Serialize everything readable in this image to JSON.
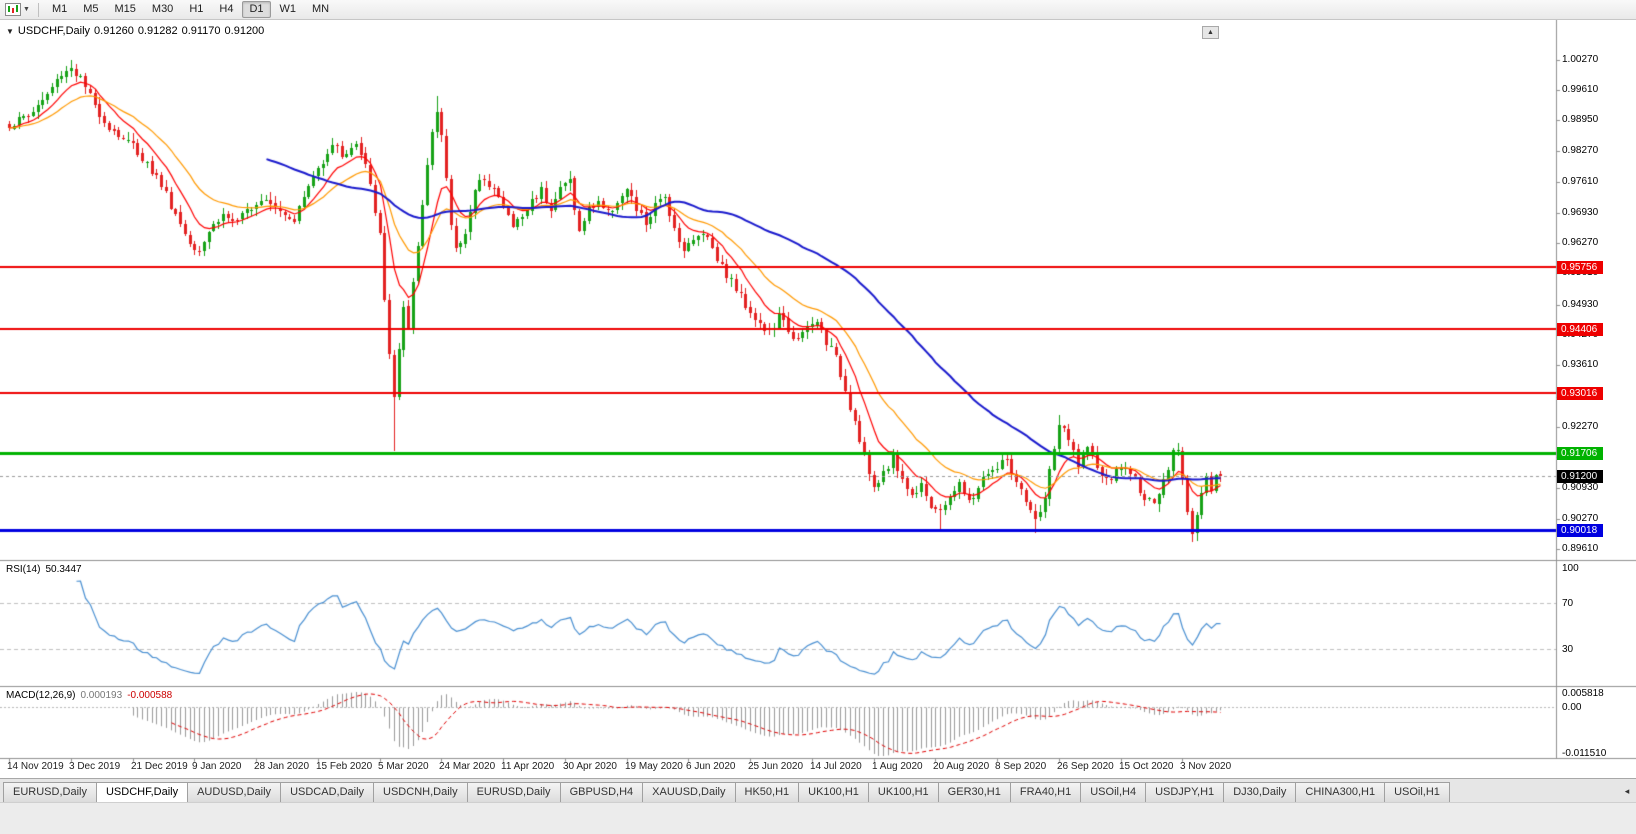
{
  "toolbar": {
    "timeframes": [
      "M1",
      "M5",
      "M15",
      "M30",
      "H1",
      "H4",
      "D1",
      "W1",
      "MN"
    ],
    "active_timeframe": "D1",
    "caret_icon": "▼"
  },
  "chart": {
    "title_marker": "▼",
    "symbol_label": "USDCHF,Daily",
    "open": "0.91260",
    "high": "0.91282",
    "low": "0.91170",
    "close": "0.91200",
    "corner_icon": "▲"
  },
  "price_axis": {
    "labels": [
      "1.00270",
      "0.99610",
      "0.98950",
      "0.98270",
      "0.97610",
      "0.96930",
      "0.96270",
      "0.95610",
      "0.94930",
      "0.94270",
      "0.93610",
      "0.92930",
      "0.92270",
      "0.91610",
      "0.90930",
      "0.90270",
      "0.89610"
    ]
  },
  "levels": [
    {
      "label": "0.95756",
      "price": 0.95756,
      "color": "#ee0000",
      "width": 2
    },
    {
      "label": "0.94406",
      "price": 0.94406,
      "color": "#ee0000",
      "width": 2
    },
    {
      "label": "0.93016",
      "price": 0.93016,
      "color": "#ee0000",
      "width": 2
    },
    {
      "label": "0.91706",
      "price": 0.91706,
      "color": "#00b200",
      "width": 3
    },
    {
      "label": "0.90018",
      "price": 0.90018,
      "color": "#0000e0",
      "width": 3
    }
  ],
  "current_price": {
    "label": "0.91200",
    "price": 0.912,
    "tag_bg": "#000000",
    "line_color": "#9a9a9a"
  },
  "rsi_panel": {
    "name": "RSI(14)",
    "value": "50.3447",
    "levels": [
      "100",
      "70",
      "30"
    ],
    "line_color": "#4a90d2",
    "level_line_color": "#c0c0c0"
  },
  "macd_panel": {
    "name": "MACD(12,26,9)",
    "value_main": "0.000193",
    "value_signal": "-0.000588",
    "axis_labels": [
      "0.005818",
      "0.00",
      "-0.011510"
    ],
    "hist_color": "#9a9a9a",
    "signal_color": "#e00000",
    "zero_line_color": "#b8b8b8"
  },
  "x_axis": {
    "labels": [
      "14 Nov 2019",
      "3 Dec 2019",
      "21 Dec 2019",
      "9 Jan 2020",
      "28 Jan 2020",
      "15 Feb 2020",
      "5 Mar 2020",
      "24 Mar 2020",
      "11 Apr 2020",
      "30 Apr 2020",
      "19 May 2020",
      "6 Jun 2020",
      "25 Jun 2020",
      "14 Jul 2020",
      "1 Aug 2020",
      "20 Aug 2020",
      "8 Sep 2020",
      "26 Sep 2020",
      "15 Oct 2020",
      "3 Nov 2020"
    ]
  },
  "tabs": {
    "items": [
      "EURUSD,Daily",
      "USDCHF,Daily",
      "AUDUSD,Daily",
      "USDCAD,Daily",
      "USDCNH,Daily",
      "EURUSD,Daily",
      "GBPUSD,H4",
      "XAUUSD,Daily",
      "HK50,H1",
      "UK100,H1",
      "UK100,H1",
      "GER30,H1",
      "FRA40,H1",
      "USOil,H4",
      "USDJPY,H1",
      "DJ30,Daily",
      "CHINA300,H1",
      "USOil,H1"
    ],
    "active_index": 1,
    "scroll_icon": "◂"
  },
  "chart_data": {
    "type": "candlestick",
    "symbol": "USDCHF",
    "timeframe": "Daily",
    "visible_range": {
      "price_min": 0.895,
      "price_max": 1.01
    },
    "n_candles": 256,
    "up_color": "#17a217",
    "down_color": "#e32222",
    "close_anchors": [
      [
        0,
        0.9885
      ],
      [
        4,
        0.9905
      ],
      [
        8,
        0.995
      ],
      [
        11,
        0.9998
      ],
      [
        13,
        1.001
      ],
      [
        15,
        0.9985
      ],
      [
        18,
        0.9925
      ],
      [
        21,
        0.988
      ],
      [
        24,
        0.9855
      ],
      [
        26,
        0.984
      ],
      [
        29,
        0.98
      ],
      [
        32,
        0.9755
      ],
      [
        35,
        0.969
      ],
      [
        38,
        0.963
      ],
      [
        40,
        0.9615
      ],
      [
        42,
        0.9655
      ],
      [
        45,
        0.969
      ],
      [
        48,
        0.967
      ],
      [
        51,
        0.971
      ],
      [
        54,
        0.973
      ],
      [
        57,
        0.97
      ],
      [
        60,
        0.968
      ],
      [
        63,
        0.975
      ],
      [
        66,
        0.981
      ],
      [
        68,
        0.9845
      ],
      [
        70,
        0.982
      ],
      [
        73,
        0.984
      ],
      [
        75,
        0.9795
      ],
      [
        77,
        0.97
      ],
      [
        78,
        0.964
      ],
      [
        79,
        0.95
      ],
      [
        80,
        0.939
      ],
      [
        81,
        0.9295
      ],
      [
        82,
        0.939
      ],
      [
        83,
        0.948
      ],
      [
        84,
        0.943
      ],
      [
        85,
        0.954
      ],
      [
        86,
        0.962
      ],
      [
        87,
        0.971
      ],
      [
        88,
        0.98
      ],
      [
        89,
        0.988
      ],
      [
        90,
        0.9915
      ],
      [
        91,
        0.986
      ],
      [
        92,
        0.976
      ],
      [
        93,
        0.967
      ],
      [
        94,
        0.9615
      ],
      [
        96,
        0.9655
      ],
      [
        98,
        0.9735
      ],
      [
        100,
        0.9775
      ],
      [
        102,
        0.9745
      ],
      [
        104,
        0.9705
      ],
      [
        106,
        0.9665
      ],
      [
        108,
        0.9685
      ],
      [
        110,
        0.972
      ],
      [
        112,
        0.9745
      ],
      [
        114,
        0.9705
      ],
      [
        116,
        0.9745
      ],
      [
        118,
        0.9765
      ],
      [
        120,
        0.965
      ],
      [
        122,
        0.97
      ],
      [
        124,
        0.972
      ],
      [
        126,
        0.969
      ],
      [
        128,
        0.972
      ],
      [
        130,
        0.974
      ],
      [
        132,
        0.97
      ],
      [
        134,
        0.967
      ],
      [
        136,
        0.9705
      ],
      [
        138,
        0.973
      ],
      [
        140,
        0.966
      ],
      [
        142,
        0.9615
      ],
      [
        144,
        0.963
      ],
      [
        146,
        0.9655
      ],
      [
        148,
        0.962
      ],
      [
        150,
        0.9575
      ],
      [
        152,
        0.9545
      ],
      [
        154,
        0.951
      ],
      [
        156,
        0.948
      ],
      [
        158,
        0.945
      ],
      [
        160,
        0.943
      ],
      [
        162,
        0.9465
      ],
      [
        164,
        0.944
      ],
      [
        166,
        0.9415
      ],
      [
        168,
        0.944
      ],
      [
        170,
        0.9455
      ],
      [
        172,
        0.9415
      ],
      [
        174,
        0.9375
      ],
      [
        176,
        0.931
      ],
      [
        178,
        0.924
      ],
      [
        180,
        0.9165
      ],
      [
        182,
        0.9085
      ],
      [
        184,
        0.913
      ],
      [
        186,
        0.916
      ],
      [
        188,
        0.9115
      ],
      [
        190,
        0.9075
      ],
      [
        192,
        0.911
      ],
      [
        194,
        0.9055
      ],
      [
        196,
        0.9035
      ],
      [
        198,
        0.908
      ],
      [
        200,
        0.91
      ],
      [
        202,
        0.906
      ],
      [
        204,
        0.9095
      ],
      [
        206,
        0.913
      ],
      [
        208,
        0.9135
      ],
      [
        210,
        0.916
      ],
      [
        212,
        0.91
      ],
      [
        214,
        0.906
      ],
      [
        216,
        0.902
      ],
      [
        218,
        0.9075
      ],
      [
        220,
        0.918
      ],
      [
        221,
        0.9235
      ],
      [
        223,
        0.9195
      ],
      [
        225,
        0.915
      ],
      [
        227,
        0.918
      ],
      [
        229,
        0.914
      ],
      [
        231,
        0.9105
      ],
      [
        233,
        0.913
      ],
      [
        235,
        0.914
      ],
      [
        237,
        0.911
      ],
      [
        239,
        0.9075
      ],
      [
        241,
        0.905
      ],
      [
        243,
        0.9105
      ],
      [
        245,
        0.9165
      ],
      [
        246,
        0.9185
      ],
      [
        247,
        0.912
      ],
      [
        248,
        0.905
      ],
      [
        249,
        0.8995
      ],
      [
        250,
        0.9035
      ],
      [
        251,
        0.9085
      ],
      [
        252,
        0.911
      ],
      [
        253,
        0.909
      ],
      [
        254,
        0.9115
      ],
      [
        255,
        0.912
      ]
    ],
    "wick_overrides": {
      "13": {
        "high": 1.0026
      },
      "81": {
        "low": 0.9175
      },
      "90": {
        "high": 0.9948
      },
      "196": {
        "low": 0.9
      },
      "216": {
        "low": 0.8995
      },
      "221": {
        "high": 0.9252
      },
      "249": {
        "low": 0.8976
      }
    },
    "moving_averages": [
      {
        "period": 9,
        "type": "ema",
        "color": "#ff0000",
        "width": 1.2
      },
      {
        "period": 21,
        "type": "ema",
        "color": "#ff9900",
        "width": 1.2
      },
      {
        "period": 55,
        "type": "sma",
        "color": "#1a1acd",
        "width": 2
      }
    ],
    "indicators": {
      "rsi_period": 14,
      "macd": [
        12,
        26,
        9
      ]
    }
  }
}
